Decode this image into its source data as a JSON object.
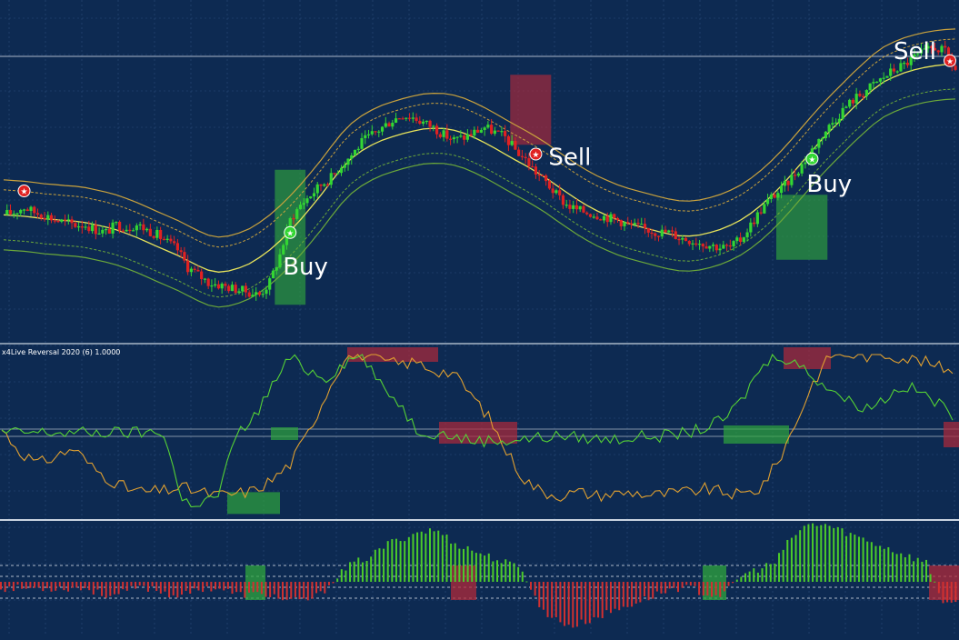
{
  "colors": {
    "background": "#0d2a52",
    "grid": "#2c4d7c",
    "bull_candle": "#33d633",
    "bear_candle": "#e02222",
    "buy_zone": "#2fa53d",
    "sell_zone": "#b02a3a",
    "envelope_outer": "#c9a23d",
    "envelope_middle": "#e7e35a",
    "envelope_lower": "#6ba83a",
    "osc_primary": "#e0a030",
    "osc_secondary": "#55d135",
    "hist_up": "#4ccc2a",
    "hist_down": "#d23030",
    "panel_separator": "#c9d3e0"
  },
  "panels": {
    "oscillator": {
      "label": "x4Live Reversal 2020 (6) 1.0000"
    }
  },
  "signals": [
    {
      "type": "sell",
      "label": "",
      "icon": "sell-star-icon"
    },
    {
      "type": "buy",
      "label": "Buy",
      "icon": "buy-star-icon"
    },
    {
      "type": "sell",
      "label": "Sell",
      "icon": "sell-star-icon"
    },
    {
      "type": "buy",
      "label": "Buy",
      "icon": "buy-star-icon"
    },
    {
      "type": "sell",
      "label": "Sell",
      "icon": "sell-star-icon"
    }
  ],
  "chart_data": [
    {
      "type": "candlestick",
      "title": "",
      "grid": true,
      "close_series": [
        40,
        41,
        43,
        41,
        40,
        38,
        37,
        36,
        36,
        34,
        33,
        36,
        35,
        36,
        34,
        32,
        29,
        26,
        19,
        16,
        13,
        12,
        11,
        10,
        9,
        8,
        13,
        24,
        38,
        44,
        48,
        52,
        55,
        60,
        64,
        69,
        72,
        75,
        78,
        80,
        79,
        77,
        75,
        72,
        70,
        71,
        73,
        75,
        73,
        71,
        66,
        62,
        57,
        53,
        48,
        44,
        42,
        41,
        40,
        39,
        38,
        36,
        35,
        34,
        33,
        33,
        31,
        30,
        29,
        28,
        27,
        27,
        30,
        36,
        42,
        47,
        50,
        55,
        60,
        66,
        72,
        77,
        82,
        86,
        89,
        92,
        95,
        98,
        100,
        103,
        105,
        107,
        105,
        98
      ],
      "buy_signals_at": [
        28,
        79
      ],
      "sell_signals_at": [
        2,
        52,
        93
      ]
    },
    {
      "type": "line",
      "title": "",
      "series": [
        {
          "values": [
            52,
            38,
            30,
            35,
            40,
            28,
            20,
            14,
            12,
            13,
            15,
            12,
            10,
            11,
            13,
            20,
            30,
            50,
            75,
            98,
            100,
            96,
            94,
            95,
            90,
            88,
            75,
            60,
            38,
            20,
            12,
            10,
            12,
            10,
            11,
            12,
            10,
            11,
            12,
            14,
            12,
            10,
            14,
            30,
            55,
            82,
            100,
            100,
            99,
            100,
            98,
            96,
            92,
            90
          ]
        },
        {
          "values": [
            50,
            50,
            50,
            50,
            50,
            50,
            50,
            50,
            50,
            50,
            6,
            5,
            10,
            48,
            60,
            80,
            98,
            90,
            85,
            95,
            100,
            80,
            70,
            52,
            50,
            48,
            45,
            45,
            45,
            46,
            47,
            48,
            47,
            46,
            46,
            47,
            48,
            48,
            50,
            53,
            58,
            70,
            90,
            100,
            95,
            86,
            78,
            70,
            66,
            72,
            80,
            76,
            68,
            60
          ]
        }
      ]
    },
    {
      "type": "bar",
      "title": "",
      "values": [
        -1,
        -1,
        -1,
        -1,
        -1,
        -1,
        -2,
        -2,
        -1,
        -1,
        -2,
        -2,
        -1,
        -1,
        -2,
        -2,
        -2,
        -3,
        -3,
        -2,
        1,
        3,
        4,
        6,
        7,
        8,
        8,
        6,
        5,
        4,
        3,
        2,
        -4,
        -6,
        -7,
        -6,
        -5,
        -4,
        -3,
        -2,
        -1,
        -1,
        -2,
        -2,
        1,
        2,
        3,
        7,
        9,
        9,
        8,
        7,
        6,
        5,
        4,
        3,
        -3,
        -4
      ]
    }
  ]
}
